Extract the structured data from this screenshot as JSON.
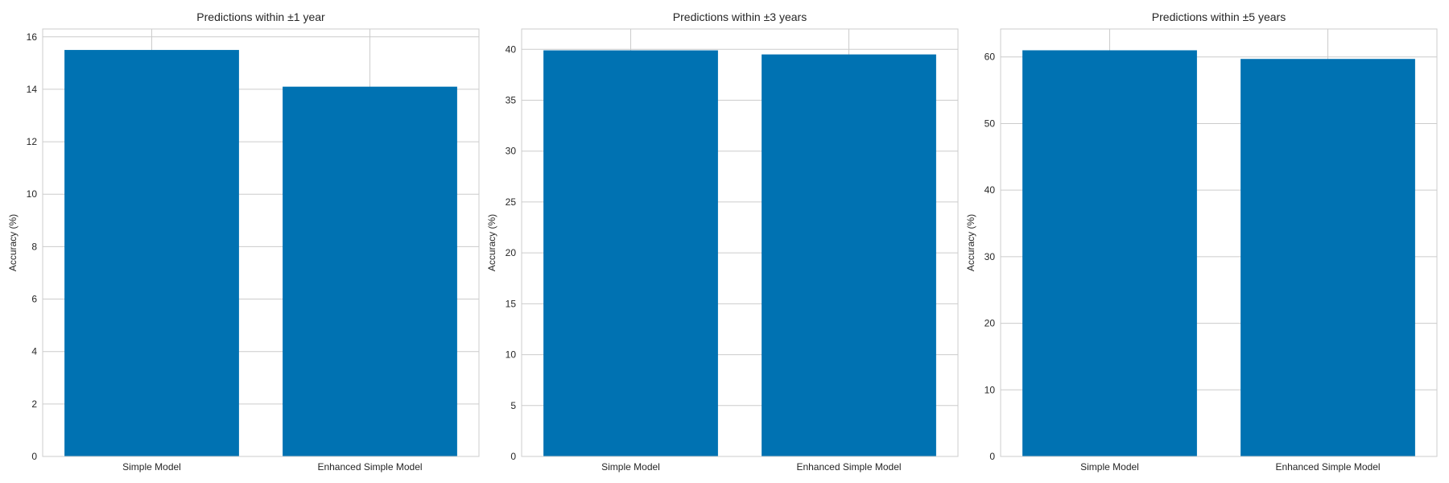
{
  "chart_data": [
    {
      "type": "bar",
      "title": "Predictions within ±1 year",
      "xlabel": "",
      "ylabel": "Accuracy (%)",
      "categories": [
        "Simple Model",
        "Enhanced Simple Model"
      ],
      "values": [
        15.5,
        14.1
      ],
      "ylim": [
        0,
        16.3
      ],
      "yticks": [
        0,
        2,
        4,
        6,
        8,
        10,
        12,
        14,
        16
      ],
      "grid": true,
      "bar_color": "#0072b2"
    },
    {
      "type": "bar",
      "title": "Predictions within ±3 years",
      "xlabel": "",
      "ylabel": "Accuracy (%)",
      "categories": [
        "Simple Model",
        "Enhanced Simple Model"
      ],
      "values": [
        39.9,
        39.5
      ],
      "ylim": [
        0,
        42
      ],
      "yticks": [
        0,
        5,
        10,
        15,
        20,
        25,
        30,
        35,
        40
      ],
      "grid": true,
      "bar_color": "#0072b2"
    },
    {
      "type": "bar",
      "title": "Predictions within ±5 years",
      "xlabel": "",
      "ylabel": "Accuracy (%)",
      "categories": [
        "Simple Model",
        "Enhanced Simple Model"
      ],
      "values": [
        61.0,
        59.7
      ],
      "ylim": [
        0,
        64.2
      ],
      "yticks": [
        0,
        10,
        20,
        30,
        40,
        50,
        60
      ],
      "grid": true,
      "bar_color": "#0072b2"
    }
  ]
}
